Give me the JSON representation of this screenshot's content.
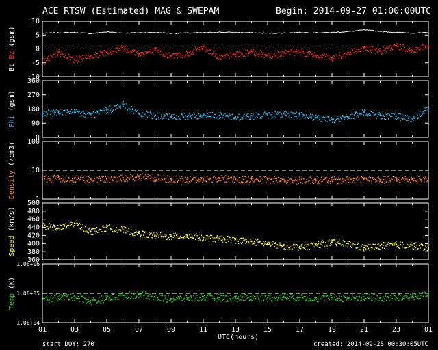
{
  "header": {
    "title": "ACE RTSW (Estimated) MAG & SWEPAM",
    "begin": "Begin: 2014-09-27 01:00:00UTC"
  },
  "footer": {
    "start_doy": "start DOY: 270",
    "created": "created: 2014-09-28 00:30:05UTC"
  },
  "x_axis": {
    "label": "UTC(hours)",
    "range": [
      1,
      25
    ],
    "ticks": [
      "01",
      "03",
      "05",
      "07",
      "09",
      "11",
      "13",
      "15",
      "17",
      "19",
      "21",
      "23",
      "01"
    ]
  },
  "colors": {
    "background": "#000000",
    "axis": "#ffffff",
    "bt": "#ffffff",
    "bz": "#ff2020",
    "phi": "#20b8e8",
    "density": "#ff8020",
    "speed": "#ffff30",
    "temp": "#20d020"
  },
  "chart_data": [
    {
      "type": "line",
      "ylabel_parts": [
        {
          "text": "Bt",
          "color": "#ffffff"
        },
        {
          "text": " Bz",
          "color": "#ff2020"
        },
        {
          "text": " (gsm)",
          "color": "#ffffff"
        }
      ],
      "yscale": "linear",
      "ylim": [
        -10,
        10
      ],
      "yticks": [
        {
          "v": 10,
          "label": "10"
        },
        {
          "v": 5,
          "label": "5"
        },
        {
          "v": 0,
          "label": "0"
        },
        {
          "v": -5,
          "label": "-5"
        },
        {
          "v": -10,
          "label": "-10"
        }
      ],
      "reference_lines": [
        0
      ],
      "series": [
        {
          "id": "bt",
          "style": "line",
          "color": "#ffffff",
          "x": [
            1,
            2,
            3,
            4,
            5,
            6,
            7,
            8,
            9,
            10,
            11,
            12,
            13,
            14,
            15,
            16,
            17,
            18,
            19,
            20,
            21,
            22,
            23,
            24,
            25
          ],
          "y": [
            5.6,
            5.8,
            5.9,
            5.5,
            6.1,
            5.7,
            5.8,
            5.9,
            5.6,
            5.7,
            5.8,
            6.0,
            5.9,
            5.8,
            5.6,
            5.7,
            5.9,
            5.8,
            5.9,
            6.2,
            6.8,
            6.3,
            5.9,
            5.7,
            5.8
          ]
        },
        {
          "id": "bz",
          "style": "dots",
          "color": "#ff2020",
          "x": [
            1,
            2,
            3,
            4,
            5,
            6,
            7,
            8,
            9,
            10,
            11,
            12,
            13,
            14,
            15,
            16,
            17,
            18,
            19,
            20,
            21,
            22,
            23,
            24,
            25
          ],
          "y": [
            -4.5,
            -1.2,
            -3.8,
            -2.5,
            -1.0,
            0.5,
            -1.8,
            -0.5,
            -2.5,
            -1.5,
            0.8,
            -3.0,
            -2.0,
            -1.0,
            -2.2,
            -1.5,
            -0.8,
            -2.5,
            -3.2,
            -1.2,
            0.5,
            -0.8,
            1.2,
            -0.5,
            1.0
          ]
        }
      ]
    },
    {
      "type": "scatter",
      "ylabel_parts": [
        {
          "text": "Phi",
          "color": "#20b8e8"
        },
        {
          "text": " (gsm)",
          "color": "#ffffff"
        }
      ],
      "yscale": "linear",
      "ylim": [
        0,
        360
      ],
      "yticks": [
        {
          "v": 360,
          "label": "360"
        },
        {
          "v": 270,
          "label": "270"
        },
        {
          "v": 180,
          "label": "180"
        },
        {
          "v": 90,
          "label": "90"
        },
        {
          "v": 0,
          "label": "0"
        }
      ],
      "reference_lines": [],
      "series": [
        {
          "id": "phi",
          "style": "dots",
          "color": "#20b8e8",
          "x": [
            1,
            2,
            3,
            4,
            5,
            6,
            7,
            8,
            9,
            10,
            11,
            12,
            13,
            14,
            15,
            16,
            17,
            18,
            19,
            20,
            21,
            22,
            23,
            24,
            25
          ],
          "y": [
            150,
            165,
            160,
            145,
            175,
            210,
            150,
            140,
            130,
            135,
            145,
            140,
            130,
            138,
            142,
            150,
            145,
            125,
            115,
            130,
            160,
            140,
            135,
            120,
            185
          ]
        }
      ]
    },
    {
      "type": "scatter",
      "ylabel_parts": [
        {
          "text": "Density",
          "color": "#ff8020"
        },
        {
          "text": " (/cm3)",
          "color": "#ffffff"
        }
      ],
      "yscale": "log",
      "ylim": [
        1,
        100
      ],
      "yticks": [
        {
          "v": 100,
          "label": "100"
        },
        {
          "v": 10,
          "label": "10"
        },
        {
          "v": 1,
          "label": "1"
        }
      ],
      "reference_lines": [
        10
      ],
      "series": [
        {
          "id": "density",
          "style": "dots",
          "color": "#ff8020",
          "x": [
            1,
            2,
            3,
            4,
            5,
            6,
            7,
            8,
            9,
            10,
            11,
            12,
            13,
            14,
            15,
            16,
            17,
            18,
            19,
            20,
            21,
            22,
            23,
            24,
            25
          ],
          "y": [
            5.0,
            5.5,
            5.2,
            4.8,
            5.0,
            5.5,
            6.0,
            5.5,
            5.0,
            4.8,
            5.0,
            5.2,
            4.9,
            5.0,
            4.8,
            4.7,
            4.6,
            4.8,
            4.5,
            4.8,
            5.0,
            4.7,
            4.9,
            5.0,
            5.1
          ]
        }
      ]
    },
    {
      "type": "scatter",
      "ylabel_parts": [
        {
          "text": "Speed",
          "color": "#ffff30"
        },
        {
          "text": " (km/s)",
          "color": "#ffffff"
        }
      ],
      "yscale": "linear",
      "ylim": [
        360,
        500
      ],
      "yticks": [
        {
          "v": 500,
          "label": "500"
        },
        {
          "v": 480,
          "label": "480"
        },
        {
          "v": 460,
          "label": "460"
        },
        {
          "v": 440,
          "label": "440"
        },
        {
          "v": 420,
          "label": "420"
        },
        {
          "v": 400,
          "label": "400"
        },
        {
          "v": 380,
          "label": "380"
        },
        {
          "v": 360,
          "label": "360"
        }
      ],
      "reference_lines": [],
      "series": [
        {
          "id": "speed",
          "style": "dots",
          "color": "#ffff30",
          "x": [
            1,
            2,
            3,
            4,
            5,
            6,
            7,
            8,
            9,
            10,
            11,
            12,
            13,
            14,
            15,
            16,
            17,
            18,
            19,
            20,
            21,
            22,
            23,
            24,
            25
          ],
          "y": [
            445,
            438,
            450,
            430,
            440,
            435,
            425,
            420,
            418,
            420,
            415,
            412,
            410,
            405,
            400,
            395,
            392,
            398,
            403,
            400,
            390,
            395,
            398,
            396,
            390
          ]
        }
      ]
    },
    {
      "type": "scatter",
      "ylabel_parts": [
        {
          "text": "Temp",
          "color": "#20d020"
        },
        {
          "text": " (K)",
          "color": "#ffffff"
        }
      ],
      "yscale": "log",
      "ylim": [
        10000,
        1000000
      ],
      "yticks": [
        {
          "v": 1000000,
          "label": "1.0E+06"
        },
        {
          "v": 100000,
          "label": "1.0E+05"
        },
        {
          "v": 10000,
          "label": "1.0E+04"
        }
      ],
      "reference_lines": [
        100000
      ],
      "series": [
        {
          "id": "temp",
          "style": "dots",
          "color": "#20d020",
          "x": [
            1,
            2,
            3,
            4,
            5,
            6,
            7,
            8,
            9,
            10,
            11,
            12,
            13,
            14,
            15,
            16,
            17,
            18,
            19,
            20,
            21,
            22,
            23,
            24,
            25
          ],
          "y": [
            60000,
            75000,
            80000,
            55000,
            70000,
            85000,
            95000,
            75000,
            65000,
            70000,
            75000,
            72000,
            70000,
            75000,
            72000,
            78000,
            73000,
            70000,
            72000,
            68000,
            75000,
            70000,
            72000,
            80000,
            90000
          ]
        }
      ]
    }
  ]
}
